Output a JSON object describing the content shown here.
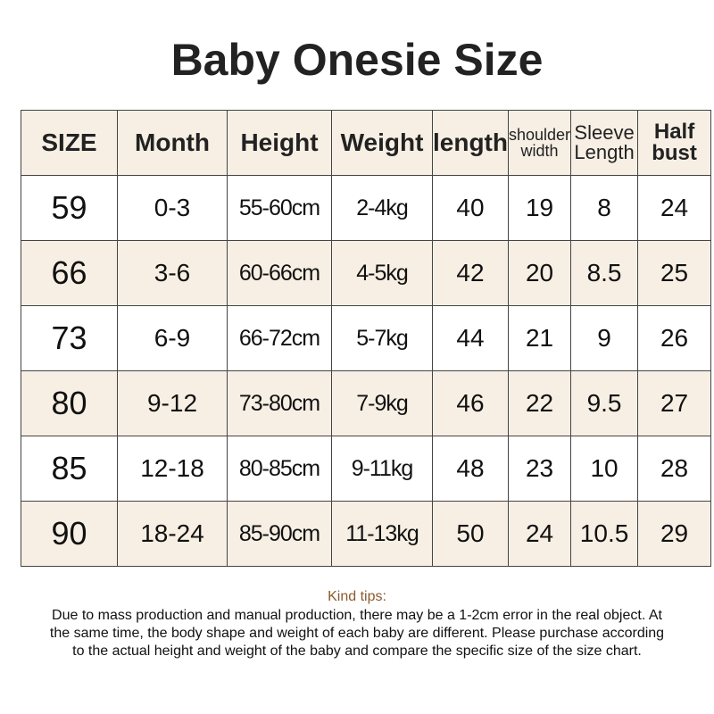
{
  "header": {
    "title": "Baby Onesie Size"
  },
  "table": {
    "columns": [
      "SIZE",
      "Month",
      "Height",
      "Weight",
      "length",
      "shoulder width",
      "Sleeve Length",
      "Half bust"
    ],
    "rows": [
      [
        "59",
        "0-3",
        "55-60cm",
        "2-4kg",
        "40",
        "19",
        "8",
        "24"
      ],
      [
        "66",
        "3-6",
        "60-66cm",
        "4-5kg",
        "42",
        "20",
        "8.5",
        "25"
      ],
      [
        "73",
        "6-9",
        "66-72cm",
        "5-7kg",
        "44",
        "21",
        "9",
        "26"
      ],
      [
        "80",
        "9-12",
        "73-80cm",
        "7-9kg",
        "46",
        "22",
        "9.5",
        "27"
      ],
      [
        "85",
        "12-18",
        "80-85cm",
        "9-11kg",
        "48",
        "23",
        "10",
        "28"
      ],
      [
        "90",
        "18-24",
        "85-90cm",
        "11-13kg",
        "50",
        "24",
        "10.5",
        "29"
      ]
    ]
  },
  "tips": {
    "title": "Kind tips:",
    "body": "Due to mass production and manual production, there may be a 1-2cm error in the real object. At the same time, the body shape and weight of each baby are different. Please purchase according to the actual height and weight of the baby and compare the specific size of the size chart."
  }
}
